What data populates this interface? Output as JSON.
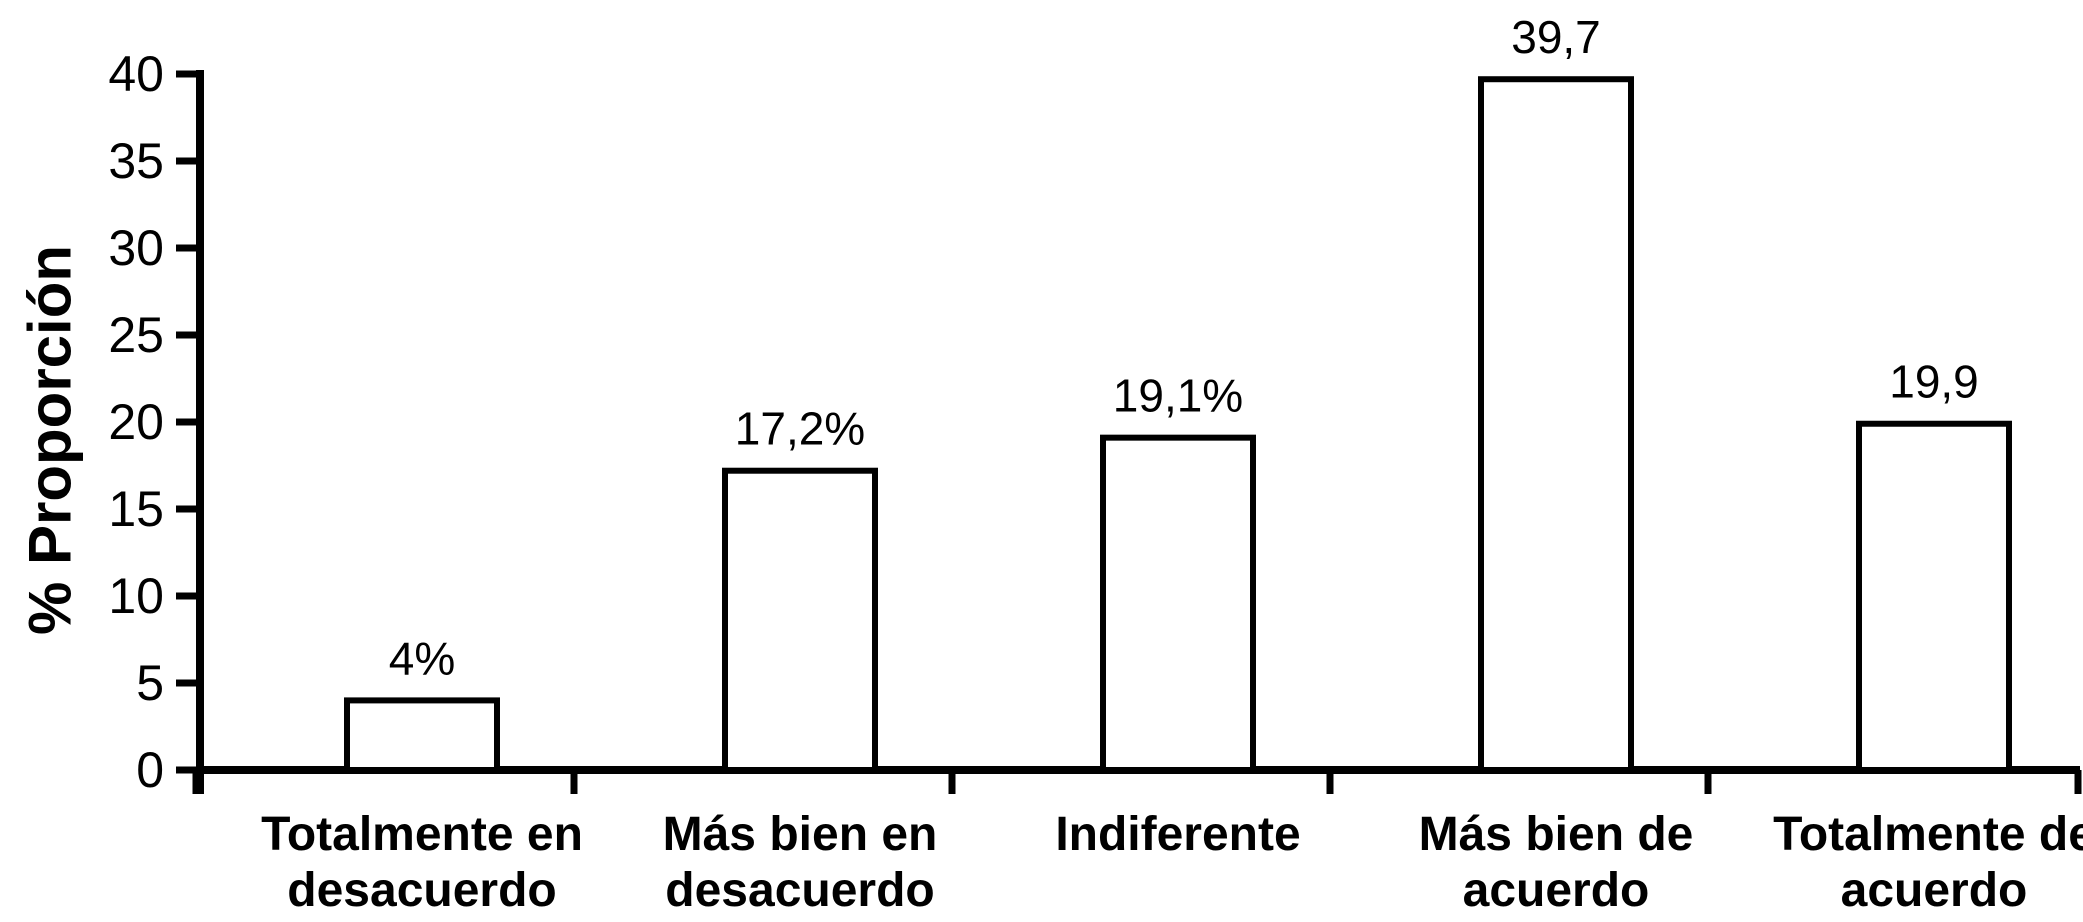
{
  "chart_data": {
    "type": "bar",
    "title": "",
    "xlabel": "",
    "ylabel": "% Proporción",
    "categories": [
      [
        "Totalmente en",
        "desacuerdo"
      ],
      [
        "Más bien en",
        "desacuerdo"
      ],
      [
        "Indiferente"
      ],
      [
        "Más bien de",
        "acuerdo"
      ],
      [
        "Totalmente de",
        "acuerdo"
      ]
    ],
    "values": [
      4,
      17.2,
      19.1,
      39.7,
      19.9
    ],
    "value_labels": [
      "4%",
      "17,2%",
      "19,1%",
      "39,7",
      "19,9"
    ],
    "y_ticks": [
      0,
      5,
      10,
      15,
      20,
      25,
      30,
      35,
      40
    ],
    "ylim": [
      0,
      40
    ],
    "grid": false,
    "legend": "none",
    "colors": {
      "bar_fill": "#ffffff",
      "bar_stroke": "#000000",
      "axis": "#000000",
      "text": "#000000",
      "background": "#ffffff"
    }
  }
}
